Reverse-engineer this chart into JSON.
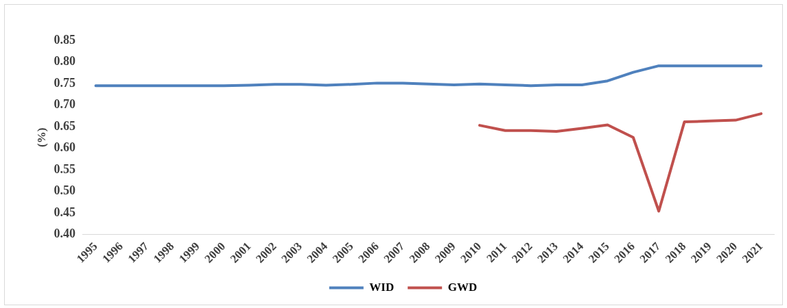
{
  "chart_data": {
    "type": "line",
    "ylabel": "(%)",
    "categories": [
      "1995",
      "1996",
      "1997",
      "1998",
      "1999",
      "2000",
      "2001",
      "2002",
      "2003",
      "2004",
      "2005",
      "2006",
      "2007",
      "2008",
      "2009",
      "2010",
      "2011",
      "2012",
      "2013",
      "2014",
      "2015",
      "2016",
      "2017",
      "2018",
      "2019",
      "2020",
      "2021"
    ],
    "series": [
      {
        "name": "WID",
        "color": "#4f81bd",
        "values": [
          0.745,
          0.745,
          0.745,
          0.745,
          0.745,
          0.745,
          0.746,
          0.748,
          0.748,
          0.746,
          0.748,
          0.751,
          0.751,
          0.749,
          0.747,
          0.749,
          0.747,
          0.745,
          0.747,
          0.747,
          0.756,
          0.776,
          0.791,
          0.791,
          0.791,
          0.791,
          0.791
        ]
      },
      {
        "name": "GWD",
        "color": "#c0504d",
        "values": [
          null,
          null,
          null,
          null,
          null,
          null,
          null,
          null,
          null,
          null,
          null,
          null,
          null,
          null,
          null,
          0.653,
          0.641,
          0.641,
          0.639,
          0.646,
          0.654,
          0.625,
          0.454,
          0.661,
          0.663,
          0.665,
          0.68
        ]
      }
    ],
    "ylim": [
      0.4,
      0.85
    ],
    "yticks": [
      {
        "value": 0.4,
        "label": "0.40"
      },
      {
        "value": 0.45,
        "label": "0.45"
      },
      {
        "value": 0.5,
        "label": "0.50"
      },
      {
        "value": 0.55,
        "label": "0.55"
      },
      {
        "value": 0.6,
        "label": "0.60"
      },
      {
        "value": 0.65,
        "label": "0.65"
      },
      {
        "value": 0.7,
        "label": "0.70"
      },
      {
        "value": 0.75,
        "label": "0.75"
      },
      {
        "value": 0.8,
        "label": "0.80"
      },
      {
        "value": 0.85,
        "label": "0.85"
      }
    ],
    "grid": false,
    "legend": "bottom",
    "marker": "none",
    "line_style": "solid"
  }
}
